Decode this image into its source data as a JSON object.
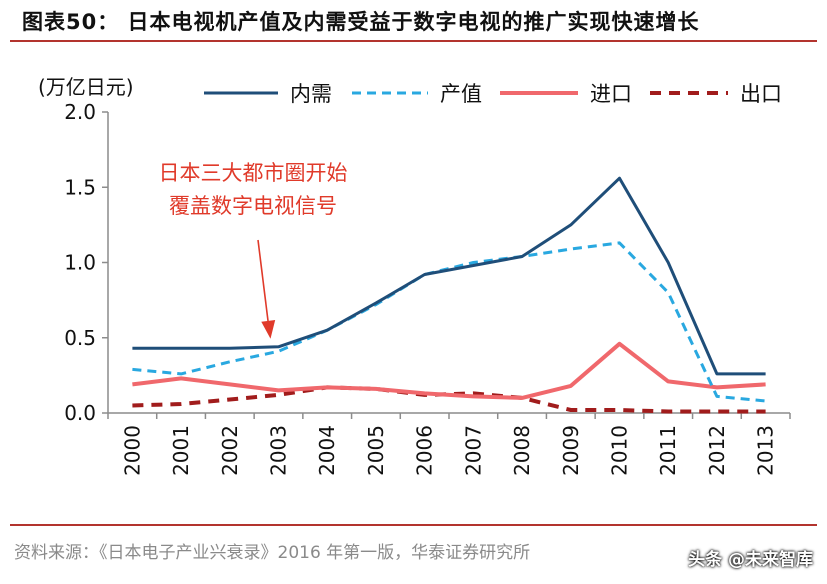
{
  "figure_title": "图表50：  日本电视机产值及内需受益于数字电视的推广实现快速增长",
  "source": "资料来源：《日本电子产业兴衰录》2016 年第一版，华泰证券研究所",
  "watermark": "头条 @未来智库",
  "colors": {
    "domestic": "#1f4e79",
    "production": "#29a8e0",
    "import": "#f0686c",
    "export": "#a11c1c",
    "accent_rule": "#b3342e",
    "annotation": "#e03a2a"
  },
  "chart_data": {
    "type": "line",
    "unit_label": "(万亿日元)",
    "categories": [
      "2000",
      "2001",
      "2002",
      "2003",
      "2004",
      "2005",
      "2006",
      "2007",
      "2008",
      "2009",
      "2010",
      "2011",
      "2012",
      "2013"
    ],
    "ylim": [
      0,
      2.0
    ],
    "yticks": [
      "0.0",
      "0.5",
      "1.0",
      "1.5",
      "2.0"
    ],
    "ytick_values": [
      0,
      0.5,
      1.0,
      1.5,
      2.0
    ],
    "grid": false,
    "legend_position": "top",
    "series": [
      {
        "name": "内需",
        "style": "solid",
        "values": [
          0.43,
          0.43,
          0.43,
          0.44,
          0.55,
          0.73,
          0.92,
          0.98,
          1.04,
          1.25,
          1.56,
          1.0,
          0.26,
          0.26
        ]
      },
      {
        "name": "产值",
        "style": "dashed",
        "values": [
          0.29,
          0.26,
          0.34,
          0.41,
          0.55,
          0.72,
          0.92,
          1.0,
          1.04,
          1.09,
          1.13,
          0.8,
          0.11,
          0.08
        ]
      },
      {
        "name": "进口",
        "style": "solid",
        "values": [
          0.19,
          0.23,
          0.19,
          0.15,
          0.17,
          0.16,
          0.13,
          0.11,
          0.1,
          0.18,
          0.46,
          0.21,
          0.17,
          0.19
        ]
      },
      {
        "name": "出口",
        "style": "dashed",
        "values": [
          0.05,
          0.06,
          0.09,
          0.12,
          0.17,
          0.16,
          0.12,
          0.13,
          0.1,
          0.02,
          0.02,
          0.01,
          0.01,
          0.01
        ]
      }
    ],
    "annotation": {
      "lines": [
        "日本三大都市圈开始",
        "覆盖数字电视信号"
      ],
      "points_to": {
        "x": "2003",
        "y": 0.44
      }
    }
  }
}
